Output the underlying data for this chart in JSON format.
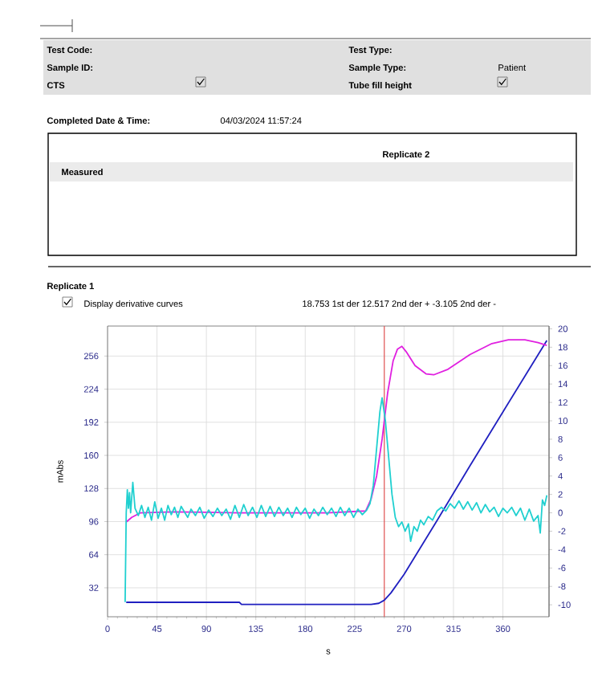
{
  "chart_data": {
    "type": "line",
    "title": "Replicate 1",
    "xlabel": "s",
    "ylabel": "mAbs",
    "annotations": [
      "Test Code:",
      "Sample ID:",
      "CTS",
      "Test Type:",
      "Sample Type:",
      "Tube fill height",
      "Patient",
      "Completed Date & Time:",
      "04/03/2024 11:57:24",
      "Measured",
      "Replicate 2",
      "Display derivative curves",
      "18.753 1st der   12.517 2nd der +   -3.105 2nd der -"
    ],
    "xlim": [
      0,
      402
    ],
    "xticks": [
      0,
      45,
      90,
      135,
      180,
      225,
      270,
      315,
      360
    ],
    "ylim": [
      4,
      285
    ],
    "yticks": [
      32,
      64,
      96,
      128,
      160,
      192,
      224,
      256
    ],
    "y2lim": [
      -11.3,
      20.3
    ],
    "y2ticks": [
      -10,
      -8,
      -6,
      -4,
      -2,
      0,
      2,
      4,
      6,
      8,
      10,
      12,
      14,
      16,
      18,
      20
    ],
    "grid": true,
    "marker": "none",
    "line_style": "solid",
    "ref_lines": [
      {
        "axis": "x",
        "value": 252,
        "color": "#e05050"
      }
    ],
    "series": [
      {
        "color": "#2020c0",
        "x": [
          17,
          120,
          122,
          240,
          247,
          252,
          258,
          270,
          300,
          330,
          360,
          400
        ],
        "values": [
          18,
          18,
          16,
          16,
          17,
          20,
          27,
          45,
          97,
          150,
          202,
          271
        ]
      },
      {
        "color": "#e020e0",
        "axis": "y2",
        "x": [
          17,
          22,
          30,
          60,
          120,
          200,
          235,
          240,
          245,
          250,
          255,
          260,
          264,
          268,
          272,
          280,
          290,
          297,
          310,
          330,
          350,
          365,
          380,
          392,
          400
        ],
        "values": [
          -1,
          -0.5,
          0,
          0.1,
          0,
          0,
          0.2,
          1.5,
          4,
          8,
          13,
          16.5,
          17.8,
          18.1,
          17.5,
          16,
          15.1,
          15,
          15.6,
          17.2,
          18.4,
          18.8,
          18.8,
          18.5,
          18.2
        ]
      },
      {
        "color": "#20d0d0",
        "axis": "y2",
        "x": [
          16,
          17,
          18,
          19,
          20,
          21,
          23,
          25,
          28,
          31,
          34,
          37,
          40,
          43,
          46,
          49,
          52,
          55,
          58,
          61,
          64,
          67,
          70,
          73,
          76,
          80,
          84,
          88,
          92,
          96,
          100,
          104,
          108,
          112,
          116,
          120,
          124,
          128,
          132,
          136,
          140,
          144,
          148,
          152,
          156,
          160,
          164,
          168,
          172,
          176,
          180,
          184,
          188,
          192,
          196,
          200,
          204,
          208,
          212,
          216,
          220,
          224,
          228,
          232,
          236,
          239,
          242,
          245,
          248,
          250,
          253,
          256,
          259,
          262,
          265,
          268,
          271,
          274,
          276,
          279,
          282,
          285,
          288,
          292,
          296,
          300,
          304,
          308,
          312,
          316,
          320,
          324,
          328,
          332,
          336,
          340,
          344,
          348,
          352,
          356,
          360,
          364,
          368,
          372,
          376,
          380,
          384,
          388,
          392,
          394,
          396,
          398,
          400
        ],
        "values": [
          -9.7,
          0,
          2.5,
          0.5,
          2.2,
          0,
          3.3,
          0.5,
          -0.3,
          0.8,
          -0.5,
          0.6,
          -0.8,
          1.2,
          -0.6,
          0.5,
          -0.8,
          0.8,
          -0.2,
          0.6,
          -0.5,
          0.7,
          0.1,
          -0.5,
          0.4,
          -0.3,
          0.6,
          -0.6,
          0.3,
          -0.4,
          0.5,
          -0.3,
          0.4,
          -0.7,
          0.8,
          -0.5,
          0.9,
          -0.3,
          0.6,
          -0.5,
          0.8,
          -0.4,
          0.7,
          -0.4,
          0.6,
          -0.3,
          0.5,
          -0.5,
          0.6,
          -0.2,
          0.5,
          -0.6,
          0.4,
          -0.3,
          0.6,
          -0.2,
          0.5,
          -0.4,
          0.6,
          -0.3,
          0.5,
          -0.5,
          0.4,
          -0.2,
          0.3,
          1,
          3,
          7,
          11,
          12.5,
          10,
          6,
          2,
          -0.5,
          -1.5,
          -1,
          -2,
          -1.2,
          -3.1,
          -1.5,
          -2,
          -0.8,
          -1.3,
          -0.4,
          -0.8,
          0.2,
          0.6,
          0.2,
          1,
          0.5,
          1.3,
          0.4,
          1.2,
          0.3,
          1.1,
          0,
          0.9,
          0.1,
          0.6,
          -0.4,
          0.5,
          0,
          0.6,
          -0.3,
          0.5,
          -0.8,
          0.4,
          -0.9,
          -0.3,
          -2.2,
          1.4,
          0.8,
          1.9
        ]
      }
    ]
  }
}
